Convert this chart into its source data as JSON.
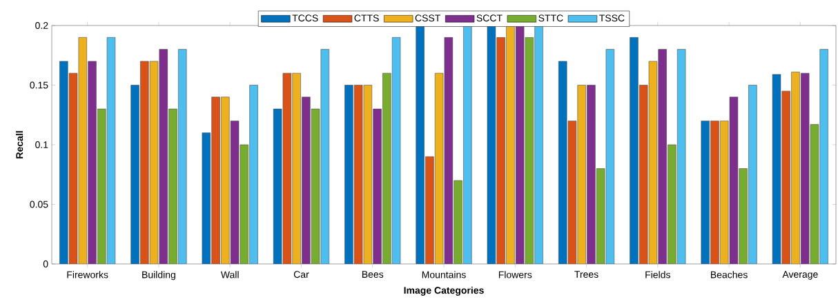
{
  "chart_data": {
    "type": "bar",
    "categories": [
      "Fireworks",
      "Building",
      "Wall",
      "Car",
      "Bees",
      "Mountains",
      "Flowers",
      "Trees",
      "Fields",
      "Beaches",
      "Average"
    ],
    "series": [
      {
        "name": "TCCS",
        "color": "#0072bd",
        "values": [
          0.17,
          0.15,
          0.11,
          0.13,
          0.15,
          0.2,
          0.2,
          0.17,
          0.19,
          0.12,
          0.159
        ]
      },
      {
        "name": "CTTS",
        "color": "#d95319",
        "values": [
          0.16,
          0.17,
          0.14,
          0.16,
          0.15,
          0.09,
          0.19,
          0.12,
          0.15,
          0.12,
          0.145
        ]
      },
      {
        "name": "CSST",
        "color": "#edb120",
        "values": [
          0.19,
          0.17,
          0.14,
          0.16,
          0.15,
          0.16,
          0.2,
          0.15,
          0.17,
          0.12,
          0.161
        ]
      },
      {
        "name": "SCCT",
        "color": "#7e2f8e",
        "values": [
          0.17,
          0.18,
          0.12,
          0.14,
          0.13,
          0.19,
          0.2,
          0.15,
          0.18,
          0.14,
          0.16
        ]
      },
      {
        "name": "STTC",
        "color": "#77ac30",
        "values": [
          0.13,
          0.13,
          0.1,
          0.13,
          0.16,
          0.07,
          0.19,
          0.08,
          0.1,
          0.08,
          0.117
        ]
      },
      {
        "name": "TSSC",
        "color": "#4dbeee",
        "values": [
          0.19,
          0.18,
          0.15,
          0.18,
          0.19,
          0.2,
          0.2,
          0.18,
          0.18,
          0.15,
          0.18
        ]
      }
    ],
    "xlabel": "Image Categories",
    "ylabel": "Recall",
    "ylim": [
      0,
      0.2
    ],
    "yticks": [
      0,
      0.05,
      0.1,
      0.15,
      0.2
    ],
    "legend": "top"
  }
}
